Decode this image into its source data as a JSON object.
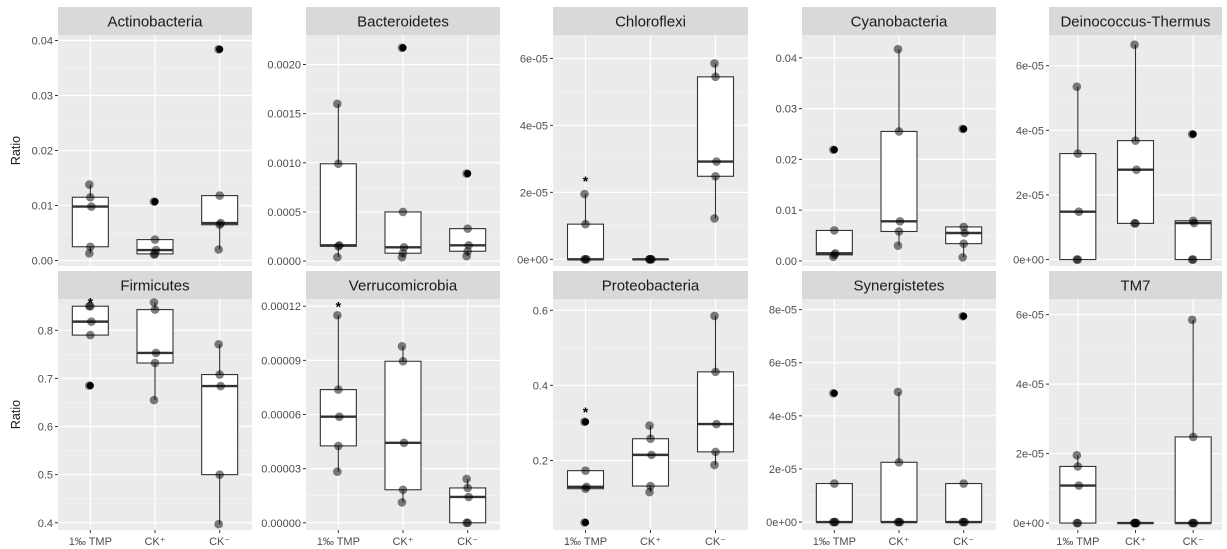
{
  "y_axis_label": "Ratio",
  "categories": [
    "1‰ TMP",
    "CK⁺",
    "CK⁻"
  ],
  "chart_data": [
    {
      "type": "box",
      "title": "Actinobacteria",
      "ylim": [
        -0.001,
        0.041
      ],
      "yticks": [
        0.0,
        0.01,
        0.02,
        0.03,
        0.04
      ],
      "ytick_labels": [
        "0.00",
        "0.01",
        "0.02",
        "0.03",
        "0.04"
      ],
      "boxes": [
        {
          "category": "1‰ TMP",
          "q1": 0.0025,
          "median": 0.0098,
          "q3": 0.0115,
          "whisker_low": 0.0013,
          "whisker_high": 0.0138,
          "points": [
            0.0013,
            0.0025,
            0.0098,
            0.0115,
            0.0138
          ],
          "outliers": []
        },
        {
          "category": "CK⁺",
          "q1": 0.0012,
          "median": 0.0019,
          "q3": 0.0038,
          "whisker_low": 0.0011,
          "whisker_high": 0.0038,
          "points": [
            0.0011,
            0.0012,
            0.0019,
            0.0038,
            0.0107
          ],
          "outliers": [
            0.0107
          ]
        },
        {
          "category": "CK⁻",
          "q1": 0.0065,
          "median": 0.0068,
          "q3": 0.0118,
          "whisker_low": 0.002,
          "whisker_high": 0.0118,
          "points": [
            0.002,
            0.0065,
            0.0068,
            0.0118,
            0.0384
          ],
          "outliers": [
            0.0384
          ]
        }
      ],
      "significance": []
    },
    {
      "type": "box",
      "title": "Bacteroidetes",
      "ylim": [
        -5e-05,
        0.0023
      ],
      "yticks": [
        0.0,
        0.0005,
        0.001,
        0.0015,
        0.002
      ],
      "ytick_labels": [
        "0.0000",
        "0.0005",
        "0.0010",
        "0.0015",
        "0.0020"
      ],
      "boxes": [
        {
          "category": "1‰ TMP",
          "q1": 0.00015,
          "median": 0.00016,
          "q3": 0.00099,
          "whisker_low": 4e-05,
          "whisker_high": 0.0016,
          "points": [
            4e-05,
            0.00015,
            0.00016,
            0.00099,
            0.0016
          ],
          "outliers": []
        },
        {
          "category": "CK⁺",
          "q1": 8e-05,
          "median": 0.00014,
          "q3": 0.0005,
          "whisker_low": 4e-05,
          "whisker_high": 0.0005,
          "points": [
            4e-05,
            8e-05,
            0.00014,
            0.0005,
            0.00217
          ],
          "outliers": [
            0.00217
          ]
        },
        {
          "category": "CK⁻",
          "q1": 0.0001,
          "median": 0.00016,
          "q3": 0.00033,
          "whisker_low": 5e-05,
          "whisker_high": 0.00033,
          "points": [
            5e-05,
            0.0001,
            0.00016,
            0.00033,
            0.00089
          ],
          "outliers": [
            0.00089
          ]
        }
      ],
      "significance": []
    },
    {
      "type": "box",
      "title": "Chloroflexi",
      "ylim": [
        -2e-06,
        6.7e-05
      ],
      "yticks": [
        0,
        2e-05,
        4e-05,
        6e-05
      ],
      "ytick_labels": [
        "0e+00",
        "2e-05",
        "4e-05",
        "6e-05"
      ],
      "boxes": [
        {
          "category": "1‰ TMP",
          "q1": 0,
          "median": 0,
          "q3": 1.05e-05,
          "whisker_low": 0,
          "whisker_high": 1.95e-05,
          "points": [
            0,
            0,
            0,
            1.05e-05,
            1.95e-05
          ],
          "outliers": []
        },
        {
          "category": "CK⁺",
          "q1": 0,
          "median": 0,
          "q3": 0,
          "whisker_low": 0,
          "whisker_high": 0,
          "points": [
            0,
            0,
            0,
            0,
            0
          ],
          "outliers": []
        },
        {
          "category": "CK⁻",
          "q1": 2.48e-05,
          "median": 2.92e-05,
          "q3": 5.45e-05,
          "whisker_low": 1.22e-05,
          "whisker_high": 5.85e-05,
          "points": [
            1.22e-05,
            2.48e-05,
            2.92e-05,
            5.45e-05,
            5.85e-05
          ],
          "outliers": []
        }
      ],
      "significance": [
        {
          "category": "1‰ TMP",
          "label": "*",
          "y": 2.4e-05
        }
      ]
    },
    {
      "type": "box",
      "title": "Cyanobacteria",
      "ylim": [
        -0.001,
        0.0445
      ],
      "yticks": [
        0.0,
        0.01,
        0.02,
        0.03,
        0.04
      ],
      "ytick_labels": [
        "0.00",
        "0.01",
        "0.02",
        "0.03",
        "0.04"
      ],
      "boxes": [
        {
          "category": "1‰ TMP",
          "q1": 0.0012,
          "median": 0.0015,
          "q3": 0.006,
          "whisker_low": 0.0008,
          "whisker_high": 0.006,
          "points": [
            0.0008,
            0.0012,
            0.0015,
            0.006,
            0.0219
          ],
          "outliers": [
            0.0219
          ]
        },
        {
          "category": "CK⁺",
          "q1": 0.0058,
          "median": 0.0078,
          "q3": 0.0255,
          "whisker_low": 0.003,
          "whisker_high": 0.0417,
          "points": [
            0.003,
            0.0058,
            0.0078,
            0.0255,
            0.0417
          ],
          "outliers": []
        },
        {
          "category": "CK⁻",
          "q1": 0.0034,
          "median": 0.0055,
          "q3": 0.0067,
          "whisker_low": 0.0007,
          "whisker_high": 0.0067,
          "points": [
            0.0007,
            0.0034,
            0.0055,
            0.0067,
            0.026
          ],
          "outliers": [
            0.026
          ]
        }
      ],
      "significance": []
    },
    {
      "type": "box",
      "title": "Deinococcus-Thermus",
      "ylim": [
        -2e-06,
        6.95e-05
      ],
      "yticks": [
        0,
        2e-05,
        4e-05,
        6e-05
      ],
      "ytick_labels": [
        "0e+00",
        "2e-05",
        "4e-05",
        "6e-05"
      ],
      "boxes": [
        {
          "category": "1‰ TMP",
          "q1": 0,
          "median": 1.48e-05,
          "q3": 3.28e-05,
          "whisker_low": 0,
          "whisker_high": 5.35e-05,
          "points": [
            0,
            0,
            1.48e-05,
            3.28e-05,
            5.35e-05
          ],
          "outliers": []
        },
        {
          "category": "CK⁺",
          "q1": 1.12e-05,
          "median": 2.78e-05,
          "q3": 3.68e-05,
          "whisker_low": 1.12e-05,
          "whisker_high": 6.65e-05,
          "points": [
            1.12e-05,
            1.12e-05,
            2.78e-05,
            3.68e-05,
            6.65e-05
          ],
          "outliers": []
        },
        {
          "category": "CK⁻",
          "q1": 0,
          "median": 1.13e-05,
          "q3": 1.2e-05,
          "whisker_low": 0,
          "whisker_high": 1.2e-05,
          "points": [
            0,
            0,
            1.13e-05,
            1.2e-05,
            3.88e-05
          ],
          "outliers": [
            3.88e-05
          ]
        }
      ],
      "significance": []
    },
    {
      "type": "box",
      "title": "Firmicutes",
      "ylim": [
        0.385,
        0.865
      ],
      "yticks": [
        0.4,
        0.5,
        0.6,
        0.7,
        0.8
      ],
      "ytick_labels": [
        "0.4",
        "0.5",
        "0.6",
        "0.7",
        "0.8"
      ],
      "boxes": [
        {
          "category": "1‰ TMP",
          "q1": 0.79,
          "median": 0.818,
          "q3": 0.85,
          "whisker_low": 0.79,
          "whisker_high": 0.85,
          "points": [
            0.685,
            0.79,
            0.818,
            0.85,
            0.85
          ],
          "outliers": [
            0.685
          ]
        },
        {
          "category": "CK⁺",
          "q1": 0.732,
          "median": 0.753,
          "q3": 0.843,
          "whisker_low": 0.655,
          "whisker_high": 0.858,
          "points": [
            0.655,
            0.732,
            0.753,
            0.843,
            0.858
          ],
          "outliers": []
        },
        {
          "category": "CK⁻",
          "q1": 0.5,
          "median": 0.684,
          "q3": 0.708,
          "whisker_low": 0.397,
          "whisker_high": 0.771,
          "points": [
            0.397,
            0.5,
            0.684,
            0.708,
            0.771
          ],
          "outliers": []
        }
      ],
      "significance": [
        {
          "category": "1‰ TMP",
          "label": "*",
          "y": 0.862
        }
      ]
    },
    {
      "type": "box",
      "title": "Verrucomicrobia",
      "ylim": [
        -4e-06,
        0.000124
      ],
      "yticks": [
        0,
        3e-05,
        6e-05,
        9e-05,
        0.00012
      ],
      "ytick_labels": [
        "0.00000",
        "0.00003",
        "0.00006",
        "0.00009",
        "0.00012"
      ],
      "boxes": [
        {
          "category": "1‰ TMP",
          "q1": 4.26e-05,
          "median": 5.88e-05,
          "q3": 7.38e-05,
          "whisker_low": 2.83e-05,
          "whisker_high": 0.000115,
          "points": [
            2.83e-05,
            4.26e-05,
            5.88e-05,
            7.38e-05,
            0.000115
          ],
          "outliers": []
        },
        {
          "category": "CK⁺",
          "q1": 1.83e-05,
          "median": 4.43e-05,
          "q3": 8.95e-05,
          "whisker_low": 1.13e-05,
          "whisker_high": 9.78e-05,
          "points": [
            1.13e-05,
            1.83e-05,
            4.43e-05,
            8.95e-05,
            9.78e-05
          ],
          "outliers": []
        },
        {
          "category": "CK⁻",
          "q1": 0,
          "median": 1.43e-05,
          "q3": 1.93e-05,
          "whisker_low": 0,
          "whisker_high": 2.43e-05,
          "points": [
            0,
            0,
            1.43e-05,
            1.93e-05,
            2.43e-05
          ],
          "outliers": []
        }
      ],
      "significance": [
        {
          "category": "1‰ TMP",
          "label": "*",
          "y": 0.000121
        }
      ]
    },
    {
      "type": "box",
      "title": "Proteobacteria",
      "ylim": [
        0.015,
        0.63
      ],
      "yticks": [
        0.2,
        0.4,
        0.6
      ],
      "ytick_labels": [
        "0.2",
        "0.4",
        "0.6"
      ],
      "boxes": [
        {
          "category": "1‰ TMP",
          "q1": 0.125,
          "median": 0.13,
          "q3": 0.173,
          "whisker_low": 0.125,
          "whisker_high": 0.173,
          "points": [
            0.035,
            0.125,
            0.13,
            0.173,
            0.303
          ],
          "outliers": [
            0.035,
            0.303
          ]
        },
        {
          "category": "CK⁺",
          "q1": 0.132,
          "median": 0.215,
          "q3": 0.258,
          "whisker_low": 0.116,
          "whisker_high": 0.293,
          "points": [
            0.116,
            0.132,
            0.215,
            0.258,
            0.293
          ],
          "outliers": []
        },
        {
          "category": "CK⁻",
          "q1": 0.223,
          "median": 0.297,
          "q3": 0.436,
          "whisker_low": 0.188,
          "whisker_high": 0.585,
          "points": [
            0.188,
            0.223,
            0.297,
            0.436,
            0.585
          ],
          "outliers": []
        }
      ],
      "significance": [
        {
          "category": "1‰ TMP",
          "label": "*",
          "y": 0.335
        }
      ]
    },
    {
      "type": "box",
      "title": "Synergistetes",
      "ylim": [
        -3e-06,
        8.4e-05
      ],
      "yticks": [
        0,
        2e-05,
        4e-05,
        6e-05,
        8e-05
      ],
      "ytick_labels": [
        "0e+00",
        "2e-05",
        "4e-05",
        "6e-05",
        "8e-05"
      ],
      "boxes": [
        {
          "category": "1‰ TMP",
          "q1": 0,
          "median": 0,
          "q3": 1.45e-05,
          "whisker_low": 0,
          "whisker_high": 1.45e-05,
          "points": [
            0,
            0,
            0,
            1.45e-05,
            4.85e-05
          ],
          "outliers": [
            4.85e-05
          ]
        },
        {
          "category": "CK⁺",
          "q1": 0,
          "median": 0,
          "q3": 2.25e-05,
          "whisker_low": 0,
          "whisker_high": 4.9e-05,
          "points": [
            0,
            0,
            0,
            2.25e-05,
            4.9e-05
          ],
          "outliers": []
        },
        {
          "category": "CK⁻",
          "q1": 0,
          "median": 0,
          "q3": 1.45e-05,
          "whisker_low": 0,
          "whisker_high": 1.45e-05,
          "points": [
            0,
            0,
            0,
            1.45e-05,
            7.75e-05
          ],
          "outliers": [
            7.75e-05
          ]
        }
      ],
      "significance": []
    },
    {
      "type": "box",
      "title": "TM7",
      "ylim": [
        -2e-06,
        6.45e-05
      ],
      "yticks": [
        0,
        2e-05,
        4e-05,
        6e-05
      ],
      "ytick_labels": [
        "0e+00",
        "2e-05",
        "4e-05",
        "6e-05"
      ],
      "boxes": [
        {
          "category": "1‰ TMP",
          "q1": 0,
          "median": 1.08e-05,
          "q3": 1.63e-05,
          "whisker_low": 0,
          "whisker_high": 1.95e-05,
          "points": [
            0,
            0,
            1.08e-05,
            1.63e-05,
            1.95e-05
          ],
          "outliers": []
        },
        {
          "category": "CK⁺",
          "q1": 0,
          "median": 0,
          "q3": 0,
          "whisker_low": 0,
          "whisker_high": 0,
          "points": [
            0,
            0,
            0,
            0,
            0
          ],
          "outliers": []
        },
        {
          "category": "CK⁻",
          "q1": 0,
          "median": 0,
          "q3": 2.48e-05,
          "whisker_low": 0,
          "whisker_high": 5.85e-05,
          "points": [
            0,
            0,
            0,
            2.48e-05,
            5.85e-05
          ],
          "outliers": []
        }
      ],
      "significance": []
    }
  ]
}
